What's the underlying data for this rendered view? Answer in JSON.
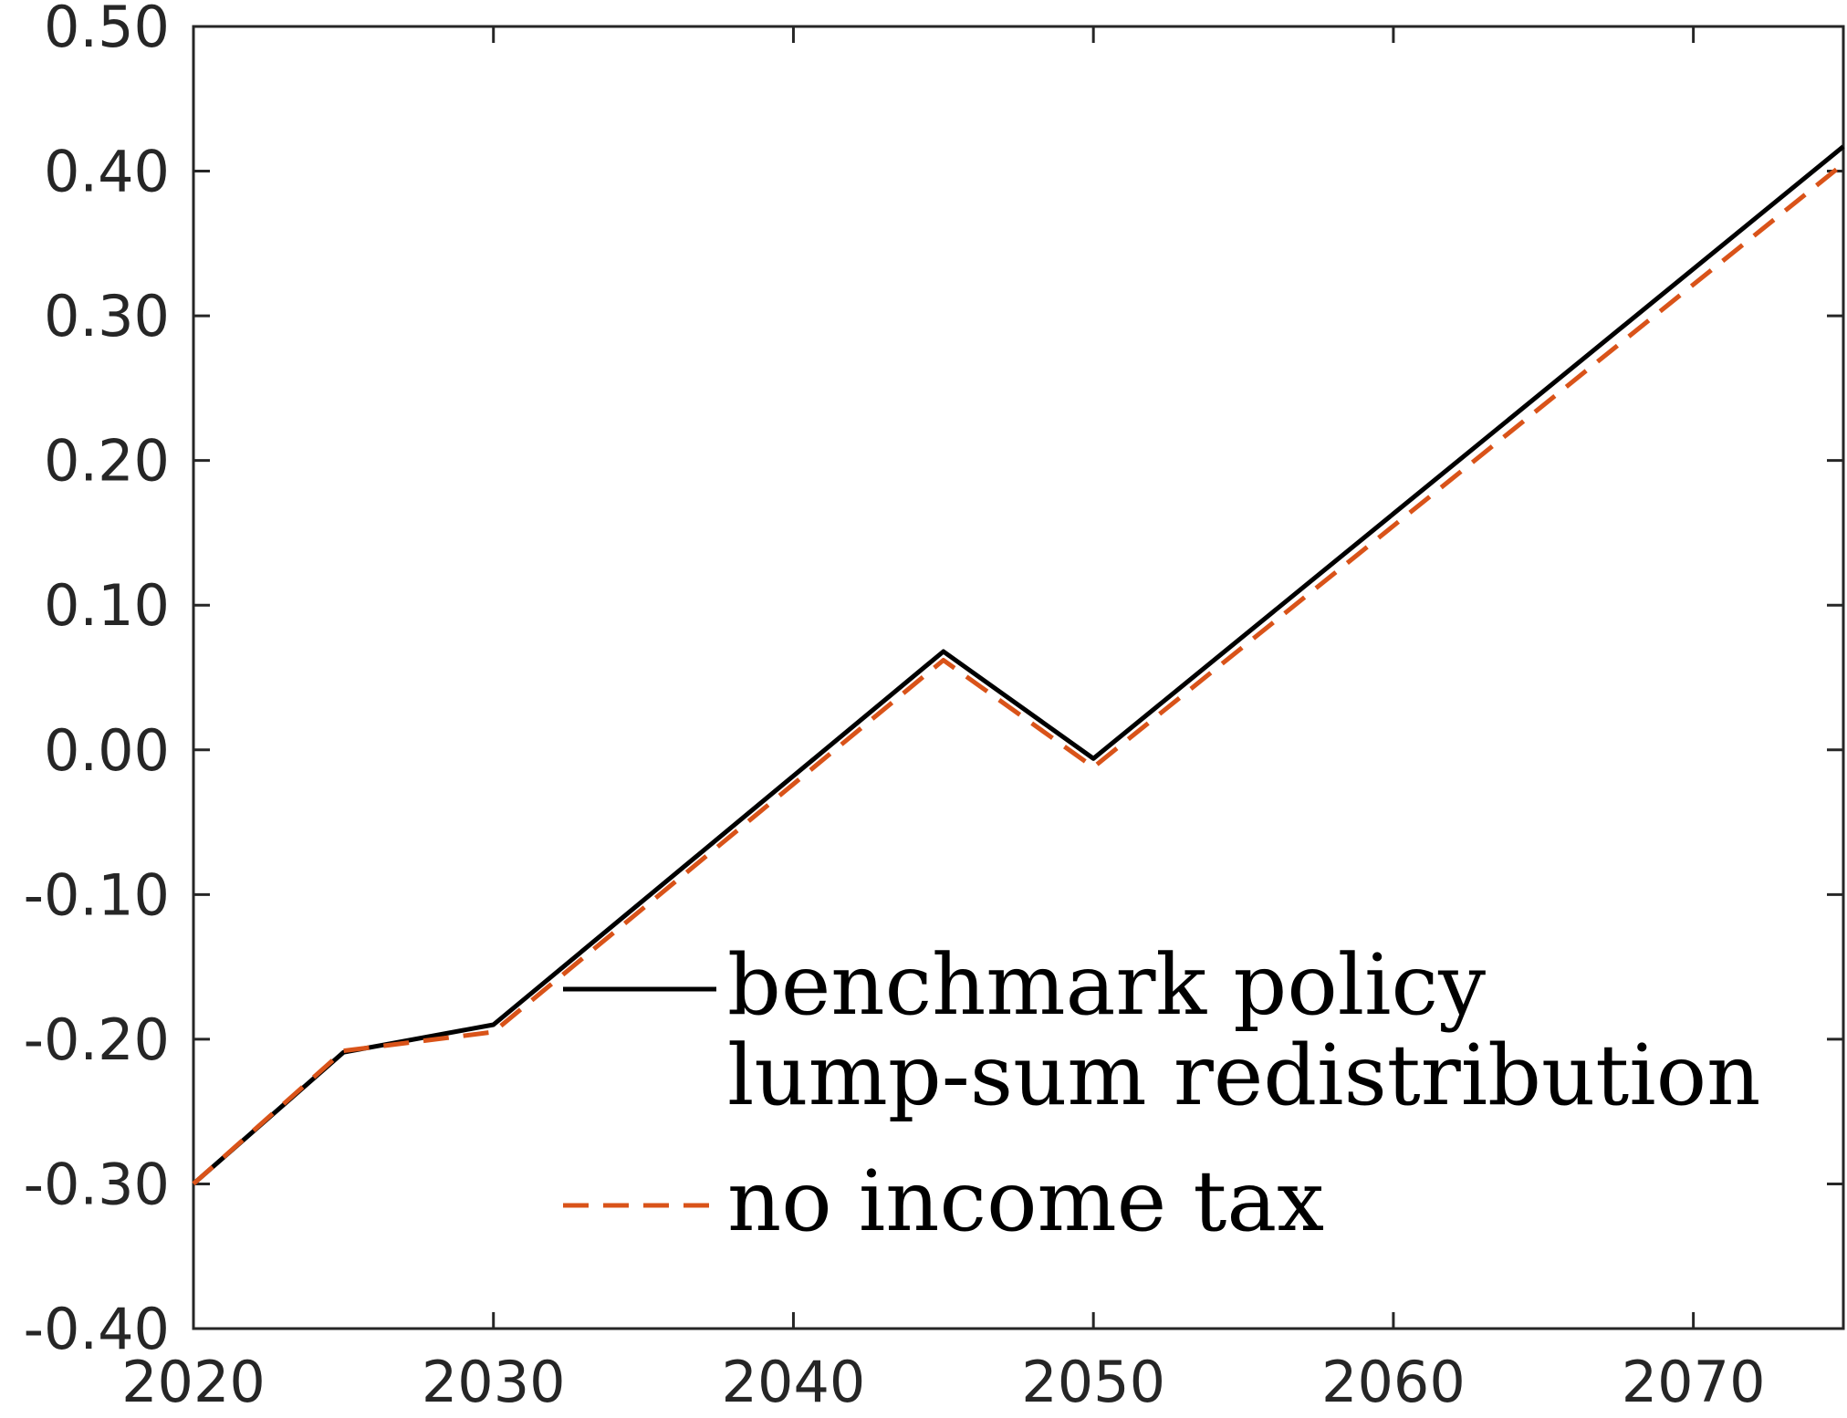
{
  "chart_data": {
    "type": "line",
    "title": "",
    "xlabel": "",
    "ylabel": "",
    "xlim": [
      2020,
      2075
    ],
    "ylim": [
      -0.4,
      0.5
    ],
    "x_ticks": [
      2020,
      2030,
      2040,
      2050,
      2060,
      2070
    ],
    "x_tick_labels": [
      "2020",
      "2030",
      "2040",
      "2050",
      "2060",
      "2070"
    ],
    "y_ticks": [
      -0.4,
      -0.3,
      -0.2,
      -0.1,
      0.0,
      0.1,
      0.2,
      0.3,
      0.4,
      0.5
    ],
    "y_tick_labels": [
      "-0.40",
      "-0.30",
      "-0.20",
      "-0.10",
      "0.00",
      "0.10",
      "0.20",
      "0.30",
      "0.40",
      "0.50"
    ],
    "grid": false,
    "legend_position": "lower-right",
    "series": [
      {
        "name": "benchmark policy",
        "color": "#000000",
        "style": "solid",
        "x": [
          2020,
          2025,
          2030,
          2045,
          2050,
          2075
        ],
        "y": [
          -0.3,
          -0.209,
          -0.19,
          0.068,
          -0.006,
          0.417
        ]
      },
      {
        "name": "no income tax",
        "color": "#D95319",
        "style": "dashed",
        "x": [
          2020,
          2025,
          2030,
          2045,
          2050,
          2075
        ],
        "y": [
          -0.3,
          -0.208,
          -0.195,
          0.062,
          -0.012,
          0.405
        ]
      }
    ],
    "legend_entries": [
      {
        "label": "benchmark policy",
        "color": "#000000",
        "style": "solid"
      },
      {
        "label": "lump-sum redistribution",
        "color": "#000000",
        "style": "none"
      },
      {
        "label": "no income tax",
        "color": "#D95319",
        "style": "dashed"
      }
    ]
  }
}
